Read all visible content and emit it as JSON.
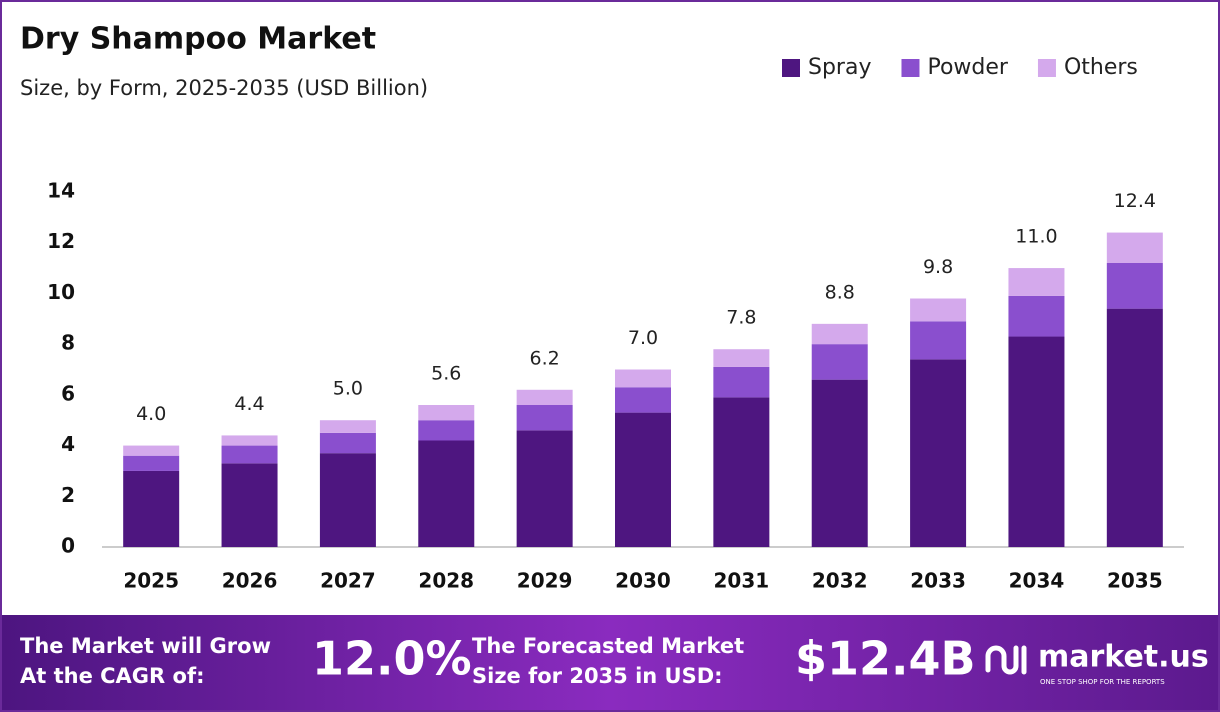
{
  "chart_data": {
    "type": "stacked-bar",
    "title": "Dry Shampoo Market",
    "subtitle": "Size, by Form, 2025-2035 (USD Billion)",
    "categories": [
      "2025",
      "2026",
      "2027",
      "2028",
      "2029",
      "2030",
      "2031",
      "2032",
      "2033",
      "2034",
      "2035"
    ],
    "series": [
      {
        "name": "Spray",
        "color": "#4e1680",
        "values": [
          3.0,
          3.3,
          3.7,
          4.2,
          4.6,
          5.3,
          5.9,
          6.6,
          7.4,
          8.3,
          9.4
        ]
      },
      {
        "name": "Powder",
        "color": "#8a4fce",
        "values": [
          0.6,
          0.7,
          0.8,
          0.8,
          1.0,
          1.0,
          1.2,
          1.4,
          1.5,
          1.6,
          1.8
        ]
      },
      {
        "name": "Others",
        "color": "#d4a9ec",
        "values": [
          0.4,
          0.4,
          0.5,
          0.6,
          0.6,
          0.7,
          0.7,
          0.8,
          0.9,
          1.1,
          1.2
        ]
      }
    ],
    "totals": {
      "values": [
        4,
        4.4,
        5,
        5.6,
        6.2,
        7,
        7.8,
        8.8,
        9.8,
        11,
        12.4
      ],
      "value_labels": [
        "4.0",
        "4.4",
        "5.0",
        "5.6",
        "6.2",
        "7.0",
        "7.8",
        "8.8",
        "9.8",
        "11.0",
        "12.4"
      ]
    },
    "ylim": [
      0,
      14
    ],
    "yticks": [
      0,
      2,
      4,
      6,
      8,
      10,
      12,
      14
    ],
    "legend": "top-right"
  },
  "footer": {
    "cagr_text": "The Market will Grow At the CAGR of:",
    "cagr": "12.0%",
    "forecast_text": "The Forecasted Market Size for 2035 in USD:",
    "forecast": "$12.4B",
    "brand": "market.us",
    "tagline": "ONE STOP SHOP FOR THE REPORTS"
  }
}
